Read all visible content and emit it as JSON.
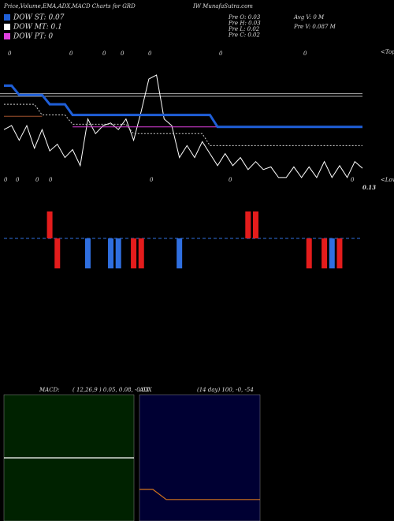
{
  "header": {
    "title": "Price,Volume,EMA,ADX,MACD Charts for GRD",
    "site": "IW MunafaSutra.com",
    "legend": [
      {
        "label": "DOW ST: 0.07",
        "color": "#1f5fd8"
      },
      {
        "label": "DOW MT: 0.1",
        "color": "#ffffff"
      },
      {
        "label": "DOW PT: 0",
        "color": "#e040e0"
      }
    ],
    "stats_left": [
      "Pre  O: 0.03",
      "Pre  H: 0.03",
      "Pre  L: 0.02",
      "Pre  C: 0.02"
    ],
    "stats_right": [
      "Avg V: 0  M",
      "Pre  V: 0.087 M"
    ]
  },
  "chart_data": [
    {
      "type": "line",
      "ylim": [
        0.12,
        0.2
      ],
      "top_labels": [
        0,
        0,
        0,
        0,
        0,
        0,
        0
      ],
      "top_note": "<Tope",
      "bottom_labels": [
        0,
        0,
        0,
        0,
        0,
        0,
        0
      ],
      "bottom_note": "<Lowe",
      "last_price": 0.13,
      "hlines": [
        0.186,
        0.184
      ],
      "hline_color": "#aaaaaa",
      "series": [
        {
          "color": "#ffffff",
          "values": [
            0.159,
            0.162,
            0.151,
            0.162,
            0.145,
            0.159,
            0.143,
            0.148,
            0.138,
            0.144,
            0.132,
            0.167,
            0.156,
            0.162,
            0.164,
            0.159,
            0.167,
            0.151,
            0.173,
            0.197,
            0.2,
            0.167,
            0.162,
            0.138,
            0.147,
            0.138,
            0.15,
            0.141,
            0.132,
            0.141,
            0.132,
            0.138,
            0.129,
            0.135,
            0.129,
            0.131,
            0.123,
            0.123,
            0.131,
            0.123,
            0.131,
            0.123,
            0.135,
            0.123,
            0.132,
            0.123,
            0.135,
            0.13
          ]
        },
        {
          "color": "#cccccc",
          "dash": true,
          "values": [
            0.178,
            0.178,
            0.178,
            0.178,
            0.178,
            0.17,
            0.17,
            0.17,
            0.17,
            0.163,
            0.163,
            0.163,
            0.163,
            0.163,
            0.163,
            0.163,
            0.163,
            0.156,
            0.156,
            0.156,
            0.156,
            0.156,
            0.156,
            0.156,
            0.156,
            0.156,
            0.156,
            0.147,
            0.147,
            0.147,
            0.147,
            0.147,
            0.147,
            0.147,
            0.147,
            0.147,
            0.147,
            0.147,
            0.147,
            0.147,
            0.147,
            0.147,
            0.147,
            0.147,
            0.147,
            0.147,
            0.147,
            0.147
          ]
        },
        {
          "color": "#a0522d",
          "values": [
            0.169,
            0.169,
            0.169,
            0.169,
            0.169,
            0.169,
            null,
            null,
            null,
            null,
            null,
            null,
            null,
            null,
            null,
            null,
            null,
            null,
            null,
            null,
            null,
            null,
            null,
            null,
            null,
            null,
            null,
            null,
            null,
            null,
            null,
            null,
            null,
            null,
            null,
            null,
            null,
            null,
            null,
            null,
            null,
            null,
            null,
            null,
            null,
            null,
            null,
            null
          ]
        },
        {
          "color": "#e040e0",
          "values": [
            null,
            null,
            null,
            null,
            null,
            null,
            null,
            null,
            null,
            0.161,
            0.161,
            0.161,
            0.161,
            0.161,
            0.161,
            0.161,
            0.161,
            0.161,
            0.161,
            0.161,
            0.161,
            0.161,
            0.161,
            0.161,
            0.161,
            0.161,
            0.161,
            0.161,
            0.161,
            0.161,
            0.161,
            0.161,
            0.161,
            0.161,
            0.161,
            0.161,
            0.161,
            0.161,
            0.161,
            0.161,
            0.161,
            0.161,
            0.161,
            0.161,
            0.161,
            0.161,
            0.161,
            0.161
          ]
        },
        {
          "color": "#1f5fd8",
          "width": 3,
          "values": [
            0.192,
            0.192,
            0.185,
            0.185,
            0.185,
            0.185,
            0.178,
            0.178,
            0.178,
            0.17,
            0.17,
            0.17,
            0.17,
            0.17,
            0.17,
            0.17,
            0.17,
            0.17,
            0.17,
            0.17,
            0.17,
            0.17,
            0.17,
            0.17,
            0.17,
            0.17,
            0.17,
            0.17,
            0.161,
            0.161,
            0.161,
            0.161,
            0.161,
            0.161,
            0.161,
            0.161,
            0.161,
            0.161,
            0.161,
            0.161,
            0.161,
            0.161,
            0.161,
            0.161,
            0.161,
            0.161,
            0.161,
            0.161
          ]
        }
      ]
    },
    {
      "type": "bar",
      "ylim": [
        -1,
        1
      ],
      "baseline_color": "#2f6fe0",
      "values": [
        null,
        null,
        null,
        null,
        null,
        null,
        0.9,
        -1,
        null,
        null,
        null,
        -1,
        null,
        null,
        -1,
        -1,
        null,
        -1,
        -1,
        null,
        null,
        null,
        null,
        -1,
        null,
        null,
        null,
        null,
        null,
        null,
        null,
        null,
        0.9,
        0.9,
        null,
        null,
        null,
        null,
        null,
        null,
        -1,
        null,
        -1,
        -1,
        -1,
        null,
        null,
        null
      ],
      "colors": [
        null,
        null,
        null,
        null,
        null,
        null,
        "#e41c1c",
        "#e41c1c",
        null,
        null,
        null,
        "#2f6fe0",
        null,
        null,
        "#2f6fe0",
        "#2f6fe0",
        null,
        "#e41c1c",
        "#e41c1c",
        null,
        null,
        null,
        null,
        "#2f6fe0",
        null,
        null,
        null,
        null,
        null,
        null,
        null,
        null,
        "#e41c1c",
        "#e41c1c",
        null,
        null,
        null,
        null,
        null,
        null,
        "#e41c1c",
        null,
        "#e41c1c",
        "#2f6fe0",
        "#e41c1c",
        null,
        null,
        null
      ]
    },
    {
      "type": "line",
      "title": "MACD:",
      "subtitle": "( 12,26,9 ) 0.05, 0.08, -0.03",
      "background": "#002200",
      "color": "#ffffff",
      "ylim": [
        -1,
        1
      ],
      "values": [
        0,
        0
      ]
    },
    {
      "type": "line",
      "title": "ADX",
      "subtitle": "(14  day) 100, -0,  -54",
      "background": "#000033",
      "color": "#d2731c",
      "ylim": [
        0,
        100
      ],
      "values": [
        25,
        25,
        17,
        17,
        17,
        17,
        17,
        17,
        17,
        17
      ]
    }
  ]
}
